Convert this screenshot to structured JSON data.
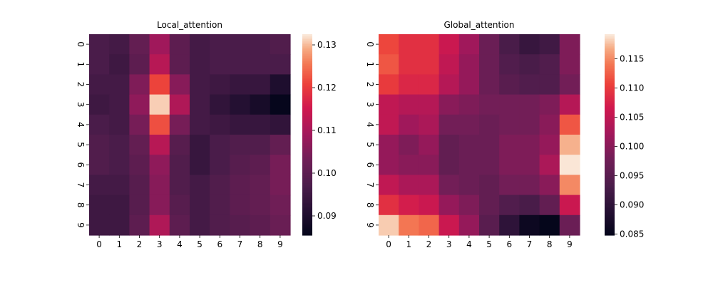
{
  "chart_data": [
    {
      "type": "heatmap",
      "title": "Local_attention",
      "x_categories": [
        "0",
        "1",
        "2",
        "3",
        "4",
        "5",
        "6",
        "7",
        "8",
        "9"
      ],
      "y_categories": [
        "0",
        "1",
        "2",
        "3",
        "4",
        "5",
        "6",
        "7",
        "8",
        "9"
      ],
      "values": [
        [
          0.097,
          0.096,
          0.101,
          0.109,
          0.1,
          0.096,
          0.097,
          0.097,
          0.097,
          0.098
        ],
        [
          0.097,
          0.095,
          0.1,
          0.112,
          0.1,
          0.096,
          0.097,
          0.097,
          0.097,
          0.097
        ],
        [
          0.096,
          0.096,
          0.105,
          0.121,
          0.106,
          0.096,
          0.095,
          0.094,
          0.094,
          0.09
        ],
        [
          0.095,
          0.096,
          0.107,
          0.131,
          0.111,
          0.096,
          0.093,
          0.091,
          0.089,
          0.086
        ],
        [
          0.097,
          0.096,
          0.104,
          0.122,
          0.104,
          0.096,
          0.095,
          0.094,
          0.094,
          0.093
        ],
        [
          0.098,
          0.097,
          0.101,
          0.112,
          0.099,
          0.094,
          0.097,
          0.098,
          0.098,
          0.101
        ],
        [
          0.098,
          0.097,
          0.1,
          0.107,
          0.098,
          0.094,
          0.097,
          0.099,
          0.1,
          0.104
        ],
        [
          0.096,
          0.096,
          0.099,
          0.106,
          0.098,
          0.096,
          0.098,
          0.1,
          0.101,
          0.104
        ],
        [
          0.095,
          0.095,
          0.099,
          0.106,
          0.099,
          0.096,
          0.098,
          0.1,
          0.101,
          0.103
        ],
        [
          0.095,
          0.095,
          0.1,
          0.111,
          0.1,
          0.096,
          0.098,
          0.099,
          0.1,
          0.102
        ]
      ],
      "colorbar": {
        "min": 0.0855,
        "max": 0.1325,
        "ticks": [
          "0.09",
          "0.10",
          "0.11",
          "0.12",
          "0.13"
        ]
      },
      "colormap": "rocket"
    },
    {
      "type": "heatmap",
      "title": "Global_attention",
      "x_categories": [
        "0",
        "1",
        "2",
        "3",
        "4",
        "5",
        "6",
        "7",
        "8",
        "9"
      ],
      "y_categories": [
        "0",
        "1",
        "2",
        "3",
        "4",
        "5",
        "6",
        "7",
        "8",
        "9"
      ],
      "values": [
        [
          0.111,
          0.109,
          0.109,
          0.106,
          0.102,
          0.097,
          0.093,
          0.091,
          0.092,
          0.099
        ],
        [
          0.112,
          0.109,
          0.109,
          0.105,
          0.101,
          0.097,
          0.094,
          0.093,
          0.094,
          0.099
        ],
        [
          0.11,
          0.108,
          0.108,
          0.104,
          0.101,
          0.097,
          0.095,
          0.094,
          0.094,
          0.098
        ],
        [
          0.105,
          0.104,
          0.104,
          0.1,
          0.099,
          0.098,
          0.098,
          0.098,
          0.099,
          0.104
        ],
        [
          0.105,
          0.102,
          0.103,
          0.098,
          0.098,
          0.097,
          0.098,
          0.098,
          0.1,
          0.112
        ],
        [
          0.101,
          0.099,
          0.101,
          0.096,
          0.097,
          0.097,
          0.099,
          0.099,
          0.101,
          0.117
        ],
        [
          0.101,
          0.1,
          0.1,
          0.096,
          0.097,
          0.097,
          0.099,
          0.099,
          0.103,
          0.119
        ],
        [
          0.105,
          0.103,
          0.103,
          0.098,
          0.097,
          0.096,
          0.098,
          0.098,
          0.1,
          0.115
        ],
        [
          0.109,
          0.107,
          0.106,
          0.101,
          0.099,
          0.096,
          0.094,
          0.093,
          0.096,
          0.106
        ],
        [
          0.118,
          0.114,
          0.113,
          0.106,
          0.101,
          0.095,
          0.09,
          0.086,
          0.085,
          0.097
        ]
      ],
      "colorbar": {
        "min": 0.0848,
        "max": 0.1192,
        "ticks": [
          "0.085",
          "0.090",
          "0.095",
          "0.100",
          "0.105",
          "0.110",
          "0.115"
        ]
      },
      "colormap": "rocket"
    }
  ]
}
